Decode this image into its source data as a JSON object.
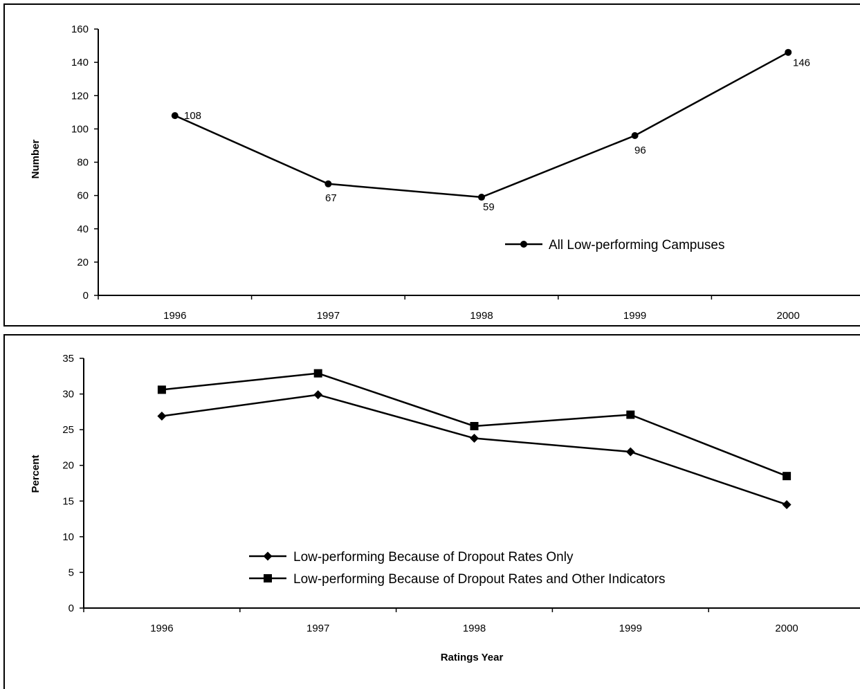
{
  "chart_data": [
    {
      "type": "line",
      "title": "",
      "xlabel": "",
      "ylabel": "Number",
      "categories": [
        "1996",
        "1997",
        "1998",
        "1999",
        "2000"
      ],
      "ylim": [
        0,
        160
      ],
      "yticks": [
        0,
        20,
        40,
        60,
        80,
        100,
        120,
        140,
        160
      ],
      "legend_position": "center-right",
      "grid": false,
      "series": [
        {
          "name": "All Low-performing Campuses",
          "marker": "circle",
          "values": [
            108,
            67,
            59,
            96,
            146
          ],
          "data_labels": [
            "108",
            "67",
            "59",
            "96",
            "146"
          ]
        }
      ]
    },
    {
      "type": "line",
      "title": "",
      "xlabel": "Ratings Year",
      "ylabel": "Percent",
      "categories": [
        "1996",
        "1997",
        "1998",
        "1999",
        "2000"
      ],
      "ylim": [
        0,
        35
      ],
      "yticks": [
        0,
        5,
        10,
        15,
        20,
        25,
        30,
        35
      ],
      "legend_position": "bottom-center",
      "grid": false,
      "series": [
        {
          "name": "Low-performing Because of Dropout Rates Only",
          "marker": "diamond",
          "values": [
            26.9,
            29.9,
            23.8,
            21.9,
            14.5
          ]
        },
        {
          "name": "Low-performing Because of Dropout Rates and Other Indicators",
          "marker": "square",
          "values": [
            30.6,
            32.9,
            25.5,
            27.1,
            18.5
          ]
        }
      ]
    }
  ]
}
